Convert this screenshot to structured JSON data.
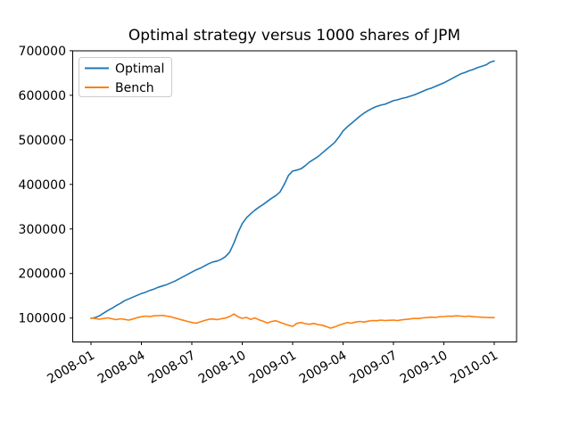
{
  "figure": {
    "background": "#ffffff"
  },
  "chart_data": {
    "type": "line",
    "title": "Optimal strategy versus 1000 shares of JPM",
    "xlabel": "",
    "ylabel": "",
    "grid": false,
    "x_unit": "months since 2008-01",
    "xlim": [
      -1.09,
      25.33
    ],
    "ylim": [
      46400,
      699800
    ],
    "xticks": [
      {
        "t": 0,
        "label": "2008-01"
      },
      {
        "t": 3,
        "label": "2008-04"
      },
      {
        "t": 6,
        "label": "2008-07"
      },
      {
        "t": 9,
        "label": "2008-10"
      },
      {
        "t": 12,
        "label": "2009-01"
      },
      {
        "t": 15,
        "label": "2009-04"
      },
      {
        "t": 18,
        "label": "2009-07"
      },
      {
        "t": 21,
        "label": "2009-10"
      },
      {
        "t": 24,
        "label": "2010-01"
      }
    ],
    "yticks": [
      {
        "v": 100000,
        "label": "100000"
      },
      {
        "v": 200000,
        "label": "200000"
      },
      {
        "v": 300000,
        "label": "300000"
      },
      {
        "v": 400000,
        "label": "400000"
      },
      {
        "v": 500000,
        "label": "500000"
      },
      {
        "v": 600000,
        "label": "600000"
      },
      {
        "v": 700000,
        "label": "700000"
      }
    ],
    "x": [
      0,
      0.25,
      0.5,
      0.75,
      1,
      1.25,
      1.5,
      1.75,
      2,
      2.25,
      2.5,
      2.75,
      3,
      3.25,
      3.5,
      3.75,
      4,
      4.25,
      4.5,
      4.75,
      5,
      5.25,
      5.5,
      5.75,
      6,
      6.25,
      6.5,
      6.75,
      7,
      7.25,
      7.5,
      7.75,
      8,
      8.25,
      8.5,
      8.75,
      9,
      9.25,
      9.5,
      9.75,
      10,
      10.25,
      10.5,
      10.75,
      11,
      11.25,
      11.5,
      11.75,
      12,
      12.25,
      12.5,
      12.75,
      13,
      13.25,
      13.5,
      13.75,
      14,
      14.25,
      14.5,
      14.75,
      15,
      15.25,
      15.5,
      15.75,
      16,
      16.25,
      16.5,
      16.75,
      17,
      17.25,
      17.5,
      17.75,
      18,
      18.25,
      18.5,
      18.75,
      19,
      19.25,
      19.5,
      19.75,
      20,
      20.25,
      20.5,
      20.75,
      21,
      21.25,
      21.5,
      21.75,
      22,
      22.25,
      22.5,
      22.75,
      23,
      23.25,
      23.5,
      23.75,
      24
    ],
    "series": [
      {
        "name": "Optimal",
        "color": "#1f77b4",
        "values": [
          99500,
          101000,
          105000,
          111000,
          117000,
          122000,
          128000,
          133000,
          139000,
          143000,
          147000,
          151000,
          155000,
          158000,
          162000,
          165000,
          169000,
          172000,
          175000,
          179000,
          183000,
          188000,
          193000,
          198000,
          203000,
          208000,
          212000,
          217000,
          222000,
          226000,
          228000,
          232000,
          238000,
          248000,
          268000,
          292000,
          312000,
          325000,
          334000,
          342000,
          349000,
          355000,
          362000,
          369000,
          375000,
          383000,
          400000,
          420000,
          430000,
          432000,
          435000,
          442000,
          450000,
          456000,
          462000,
          470000,
          478000,
          486000,
          494000,
          506000,
          520000,
          529000,
          537000,
          545000,
          553000,
          560000,
          566000,
          571000,
          575000,
          578000,
          580000,
          584000,
          588000,
          590000,
          593000,
          595000,
          598000,
          601000,
          605000,
          609000,
          613000,
          616000,
          620000,
          624000,
          628000,
          633000,
          638000,
          643000,
          648000,
          651000,
          655000,
          658000,
          662000,
          665000,
          668000,
          674000,
          677000
        ]
      },
      {
        "name": "Bench",
        "color": "#ff7f0e",
        "values": [
          100000,
          99000,
          97500,
          99000,
          100500,
          98500,
          96500,
          98500,
          97000,
          95500,
          98000,
          101000,
          103000,
          104500,
          103500,
          105000,
          105500,
          106000,
          104500,
          103000,
          100000,
          97500,
          95000,
          92500,
          90000,
          88500,
          91500,
          94500,
          97000,
          98000,
          96500,
          98500,
          100000,
          103500,
          109000,
          103000,
          99500,
          101500,
          97000,
          100500,
          96000,
          93000,
          89000,
          92500,
          94000,
          90500,
          87000,
          84000,
          81500,
          88000,
          90000,
          87500,
          86000,
          88000,
          85500,
          84000,
          81000,
          77500,
          80000,
          84000,
          87000,
          90000,
          88500,
          91000,
          92500,
          91000,
          93000,
          94500,
          94000,
          95500,
          94500,
          95000,
          95500,
          94500,
          96000,
          97000,
          98000,
          99500,
          99000,
          100500,
          101000,
          102000,
          101500,
          103000,
          103500,
          104500,
          104000,
          105000,
          104500,
          103500,
          104500,
          103000,
          102500,
          102000,
          101500,
          101000,
          101000
        ]
      }
    ],
    "legend": {
      "position": "upper-left",
      "entries": [
        "Optimal",
        "Bench"
      ]
    }
  }
}
